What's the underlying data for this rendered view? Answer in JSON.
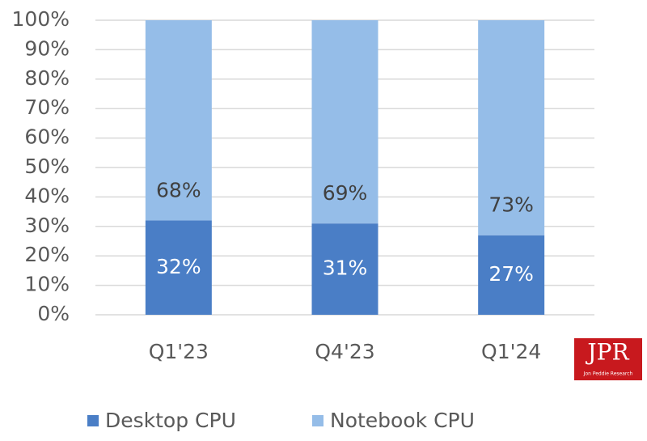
{
  "chart_data": {
    "type": "stacked_bar",
    "categories": [
      "Q1'23",
      "Q4'23",
      "Q1'24"
    ],
    "series": [
      {
        "name": "Desktop CPU",
        "color": "#4a7ec6",
        "values": [
          32,
          31,
          27
        ],
        "value_labels": [
          "32%",
          "31%",
          "27%"
        ],
        "label_color": "#ffffff"
      },
      {
        "name": "Notebook CPU",
        "color": "#95bde8",
        "values": [
          68,
          69,
          73
        ],
        "value_labels": [
          "68%",
          "69%",
          "73%"
        ],
        "label_color": "#404040"
      }
    ],
    "ylim": [
      0,
      100
    ],
    "yticks": [
      {
        "value": 0,
        "label": "0%"
      },
      {
        "value": 10,
        "label": "10%"
      },
      {
        "value": 20,
        "label": "20%"
      },
      {
        "value": 30,
        "label": "30%"
      },
      {
        "value": 40,
        "label": "40%"
      },
      {
        "value": 50,
        "label": "50%"
      },
      {
        "value": 60,
        "label": "60%"
      },
      {
        "value": 70,
        "label": "70%"
      },
      {
        "value": 80,
        "label": "80%"
      },
      {
        "value": 90,
        "label": "90%"
      },
      {
        "value": 100,
        "label": "100%"
      }
    ],
    "grid": true,
    "legend": "bottom",
    "logo": {
      "text": "JPR",
      "subtitle": "Jon Peddie Research"
    }
  }
}
